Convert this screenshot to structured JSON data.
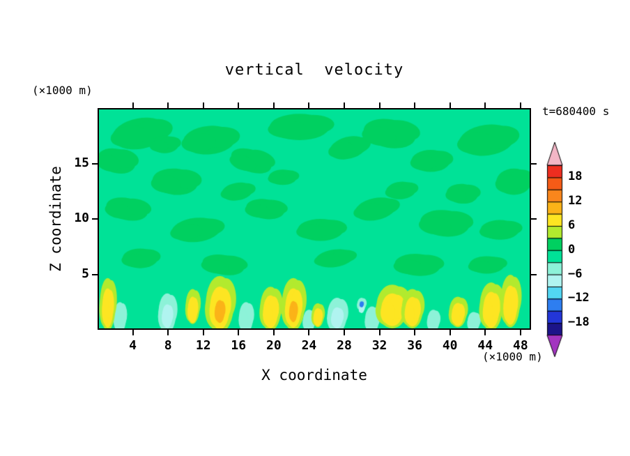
{
  "chart_data": {
    "type": "heatmap",
    "subtype": "filled-contour",
    "title": "vertical  velocity",
    "timestamp": "t=680400 s",
    "xlabel": "X coordinate",
    "ylabel": "Z coordinate",
    "x_units_label": "(×1000 m)",
    "z_units_label": "(×1000 m)",
    "x_range": [
      0,
      49.2
    ],
    "z_range": [
      0,
      20
    ],
    "x_ticks": [
      4,
      8,
      12,
      16,
      20,
      24,
      28,
      32,
      36,
      40,
      44,
      48
    ],
    "z_ticks": [
      5,
      10,
      15
    ],
    "grid": false,
    "colorbar": {
      "position": "right",
      "interval": 3,
      "levels_min": -21,
      "levels_max": 21,
      "labels": [
        "18",
        "12",
        "6",
        "0",
        "−6",
        "−12",
        "−18"
      ],
      "label_values": [
        18,
        12,
        6,
        0,
        -6,
        -12,
        -18
      ],
      "over_color": "#f3b6c6",
      "under_color": "#a335c0",
      "band_colors_top_to_bottom": [
        "#ee2e20",
        "#f55b17",
        "#f9861c",
        "#fbb318",
        "#fde522",
        "#b2ea2e",
        "#00d060",
        "#00e297",
        "#8df2d8",
        "#b0f4f0",
        "#52d6f2",
        "#2e7ef0",
        "#2336d8",
        "#1c1489"
      ]
    },
    "field_colors": {
      "base": "#00e297",
      "blotch": "#00d060",
      "halo": "#b2ea2e",
      "core": "#fde522",
      "core_strong": "#fbb318",
      "down1": "#8df2d8",
      "down2": "#b0f4f0",
      "down3": "#2e7ef0"
    },
    "blotches": [
      [
        4.7,
        17.8,
        3.2,
        1.4,
        -10
      ],
      [
        2.0,
        15.3,
        2.2,
        1.1,
        15
      ],
      [
        8.7,
        13.4,
        2.6,
        1.2,
        5
      ],
      [
        12.6,
        17.2,
        3.0,
        1.3,
        -5
      ],
      [
        17.4,
        15.3,
        2.4,
        1.0,
        20
      ],
      [
        22.9,
        18.4,
        3.4,
        1.2,
        0
      ],
      [
        28.5,
        16.5,
        2.2,
        1.0,
        -15
      ],
      [
        33.2,
        17.8,
        3.0,
        1.3,
        10
      ],
      [
        37.9,
        15.3,
        2.2,
        1.0,
        0
      ],
      [
        44.3,
        17.2,
        3.2,
        1.4,
        -8
      ],
      [
        47.4,
        13.4,
        2.0,
        1.2,
        0
      ],
      [
        3.2,
        10.9,
        2.4,
        1.0,
        12
      ],
      [
        11.1,
        9.0,
        2.8,
        1.1,
        -6
      ],
      [
        19.0,
        10.9,
        2.2,
        0.9,
        8
      ],
      [
        25.3,
        9.0,
        2.6,
        1.0,
        0
      ],
      [
        31.6,
        10.9,
        2.4,
        1.0,
        -12
      ],
      [
        39.5,
        9.6,
        2.8,
        1.2,
        6
      ],
      [
        45.8,
        9.0,
        2.2,
        0.9,
        0
      ],
      [
        4.7,
        6.4,
        2.0,
        0.9,
        0
      ],
      [
        14.2,
        5.8,
        2.4,
        0.9,
        10
      ],
      [
        26.9,
        6.4,
        2.2,
        0.8,
        -8
      ],
      [
        36.4,
        5.8,
        2.6,
        1.0,
        4
      ],
      [
        44.3,
        5.8,
        2.0,
        0.8,
        0
      ],
      [
        7.5,
        16.8,
        1.6,
        0.8,
        0
      ],
      [
        15.8,
        12.5,
        1.8,
        0.8,
        -10
      ],
      [
        41.5,
        12.3,
        1.8,
        0.9,
        5
      ],
      [
        21.0,
        13.8,
        1.6,
        0.7,
        0
      ],
      [
        34.5,
        12.6,
        1.7,
        0.8,
        -5
      ]
    ],
    "updrafts": [
      [
        1.0,
        2.2,
        0.9,
        2.4,
        2
      ],
      [
        10.7,
        2.0,
        0.8,
        1.6,
        1
      ],
      [
        13.8,
        2.2,
        1.6,
        2.6,
        3
      ],
      [
        19.6,
        1.8,
        1.2,
        2.0,
        2
      ],
      [
        22.2,
        2.2,
        1.3,
        2.4,
        3
      ],
      [
        25.0,
        1.2,
        0.7,
        1.1,
        1
      ],
      [
        33.5,
        2.0,
        1.8,
        2.0,
        1
      ],
      [
        35.8,
        1.8,
        1.2,
        1.8,
        2
      ],
      [
        41.0,
        1.5,
        1.0,
        1.4,
        1
      ],
      [
        44.8,
        2.0,
        1.3,
        2.2,
        2
      ],
      [
        47.0,
        2.5,
        1.1,
        2.4,
        2
      ]
    ],
    "downdrafts": [
      [
        2.4,
        1.0,
        0.7,
        1.4,
        1
      ],
      [
        7.8,
        1.4,
        1.0,
        1.8,
        2
      ],
      [
        16.8,
        1.0,
        0.8,
        1.4,
        1
      ],
      [
        24.0,
        0.7,
        0.7,
        1.0,
        1
      ],
      [
        27.2,
        1.2,
        1.1,
        1.6,
        2
      ],
      [
        30.0,
        2.2,
        0.5,
        0.6,
        3
      ],
      [
        31.2,
        0.8,
        0.8,
        1.2,
        1
      ],
      [
        38.2,
        0.7,
        0.7,
        1.0,
        1
      ],
      [
        42.8,
        0.6,
        0.7,
        0.9,
        1
      ]
    ]
  }
}
